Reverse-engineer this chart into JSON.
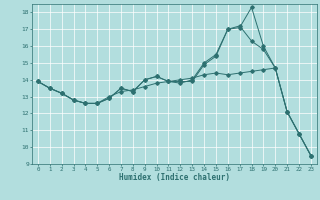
{
  "xlabel": "Humidex (Indice chaleur)",
  "bg_color": "#b2dede",
  "grid_color": "#ffffff",
  "line_color": "#2d7070",
  "xlim": [
    -0.5,
    23.5
  ],
  "ylim": [
    9,
    18.5
  ],
  "yticks": [
    9,
    10,
    11,
    12,
    13,
    14,
    15,
    16,
    17,
    18
  ],
  "xticks": [
    0,
    1,
    2,
    3,
    4,
    5,
    6,
    7,
    8,
    9,
    10,
    11,
    12,
    13,
    14,
    15,
    16,
    17,
    18,
    19,
    20,
    21,
    22,
    23
  ],
  "series": [
    {
      "x": [
        0,
        1,
        2,
        3,
        4,
        5,
        6,
        7,
        8,
        9,
        10,
        11,
        12,
        13,
        14,
        15,
        16,
        17,
        18,
        19,
        20,
        21,
        22,
        23
      ],
      "y": [
        13.9,
        13.5,
        13.2,
        12.8,
        12.6,
        12.6,
        12.9,
        13.5,
        13.3,
        14.0,
        14.2,
        13.9,
        13.9,
        13.9,
        14.9,
        15.4,
        17.0,
        17.1,
        18.3,
        16.0,
        14.7,
        12.1,
        10.8,
        9.5
      ]
    },
    {
      "x": [
        0,
        1,
        2,
        3,
        4,
        5,
        6,
        7,
        8,
        9,
        10,
        11,
        12,
        13,
        14,
        15,
        16,
        17,
        18,
        19,
        20,
        21,
        22,
        23
      ],
      "y": [
        13.9,
        13.5,
        13.2,
        12.8,
        12.6,
        12.6,
        12.9,
        13.5,
        13.3,
        14.0,
        14.2,
        13.9,
        13.8,
        14.0,
        15.0,
        15.5,
        17.0,
        17.2,
        16.3,
        15.8,
        14.7,
        12.1,
        10.8,
        9.5
      ]
    },
    {
      "x": [
        0,
        1,
        2,
        3,
        4,
        5,
        6,
        7,
        8,
        9,
        10,
        11,
        12,
        13,
        14,
        15,
        16,
        17,
        18,
        19,
        20,
        21,
        22,
        23
      ],
      "y": [
        13.9,
        13.5,
        13.2,
        12.8,
        12.6,
        12.6,
        13.0,
        13.3,
        13.4,
        13.6,
        13.8,
        13.9,
        14.0,
        14.1,
        14.3,
        14.4,
        14.3,
        14.4,
        14.5,
        14.6,
        14.7,
        12.1,
        10.8,
        9.5
      ]
    }
  ]
}
